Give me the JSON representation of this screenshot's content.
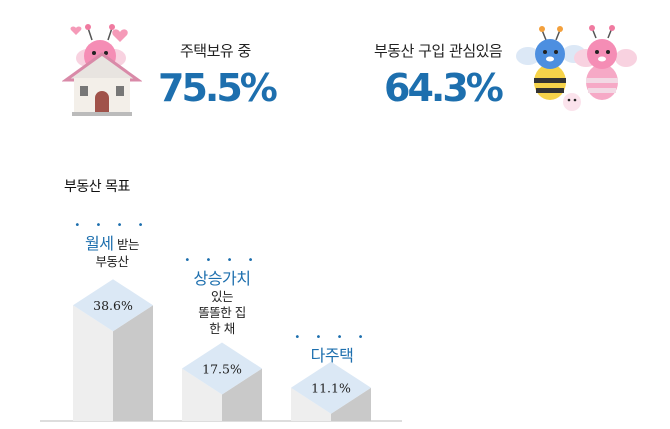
{
  "stats": [
    {
      "label": "주택보유 중",
      "value": "75.5%"
    },
    {
      "label": "부동산 구입 관심있음",
      "value": "64.3%"
    }
  ],
  "section": {
    "title": "부동산 목표"
  },
  "captions": [
    {
      "emphasis": "월세",
      "rest": " 받는",
      "lines": [
        "부동산"
      ]
    },
    {
      "emphasis": "상승가치",
      "rest": "",
      "lines": [
        "있는",
        "똘똘한 집",
        "한 채"
      ]
    },
    {
      "emphasis": "다주택",
      "rest": "",
      "lines": []
    }
  ],
  "emphasis_dots": "• • • •",
  "chart_data": {
    "type": "bar",
    "title": "부동산 목표",
    "categories": [
      "월세 받는 부동산",
      "상승가치 있는 똘똘한 집 한 채",
      "다주택"
    ],
    "values": [
      38.6,
      17.5,
      11.1
    ],
    "value_labels": [
      "38.6%",
      "17.5%",
      "11.1%"
    ],
    "unit": "%",
    "grid": false,
    "colors": {
      "top": "#dbe8f5",
      "front": "#eeeeee",
      "side": "#c9c9c9",
      "accent": "#1d6fae"
    }
  }
}
